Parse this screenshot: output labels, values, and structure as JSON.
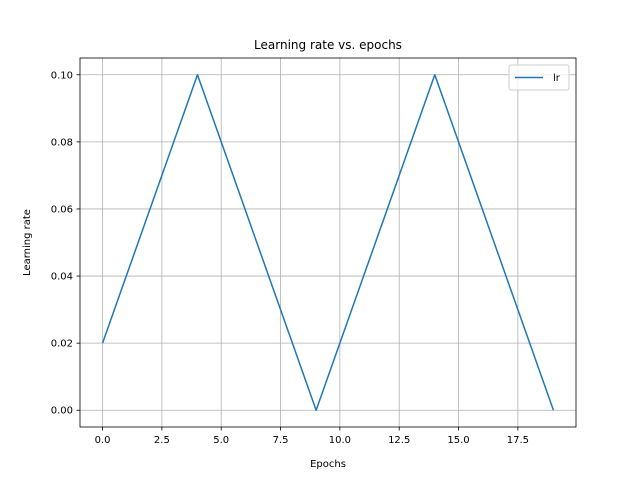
{
  "chart_data": {
    "type": "line",
    "title": "Learning rate vs. epochs",
    "xlabel": "Epochs",
    "ylabel": "Learning rate",
    "xlim": [
      -0.95,
      19.95
    ],
    "ylim": [
      -0.005,
      0.105
    ],
    "xticks": [
      0,
      2.5,
      5,
      7.5,
      10,
      12.5,
      15,
      17.5
    ],
    "xtick_labels": [
      "0.0",
      "2.5",
      "5.0",
      "7.5",
      "10.0",
      "12.5",
      "15.0",
      "17.5"
    ],
    "yticks": [
      0,
      0.02,
      0.04,
      0.06,
      0.08,
      0.1
    ],
    "ytick_labels": [
      "0.00",
      "0.02",
      "0.04",
      "0.06",
      "0.08",
      "0.10"
    ],
    "grid": true,
    "legend": {
      "position": "top-right"
    },
    "series": [
      {
        "name": "lr",
        "color": "#1f77b4",
        "x": [
          0,
          4,
          9,
          14,
          19
        ],
        "y": [
          0.02,
          0.1,
          0.0,
          0.1,
          0.0
        ]
      }
    ]
  }
}
